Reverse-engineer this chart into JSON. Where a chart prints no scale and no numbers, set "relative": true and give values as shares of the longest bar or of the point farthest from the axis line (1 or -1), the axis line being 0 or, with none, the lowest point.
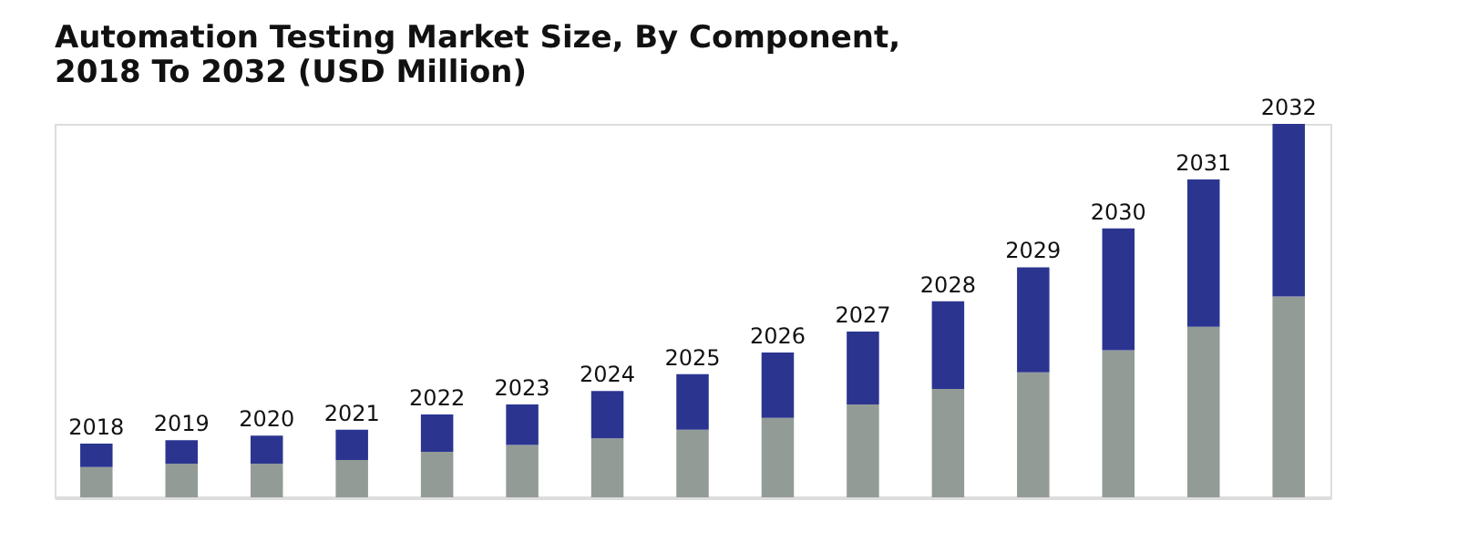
{
  "chart_data": {
    "type": "bar",
    "title": [
      "Automation Testing Market Size, By Component,",
      "2018 To 2032 (USD Million)"
    ],
    "relative": true,
    "stacked": true,
    "categories": [
      "2018",
      "2019",
      "2020",
      "2021",
      "2022",
      "2023",
      "2024",
      "2025",
      "2026",
      "2027",
      "2028",
      "2029",
      "2030",
      "2031",
      "2032"
    ],
    "series": [
      {
        "color": "#939b97",
        "values": [
          0.081,
          0.09,
          0.09,
          0.1,
          0.122,
          0.14,
          0.158,
          0.181,
          0.213,
          0.249,
          0.29,
          0.335,
          0.394,
          0.457,
          0.538
        ]
      },
      {
        "color": "#2b3590",
        "values": [
          0.063,
          0.063,
          0.075,
          0.081,
          0.1,
          0.109,
          0.127,
          0.149,
          0.175,
          0.195,
          0.235,
          0.281,
          0.326,
          0.394,
          0.462
        ]
      }
    ]
  }
}
